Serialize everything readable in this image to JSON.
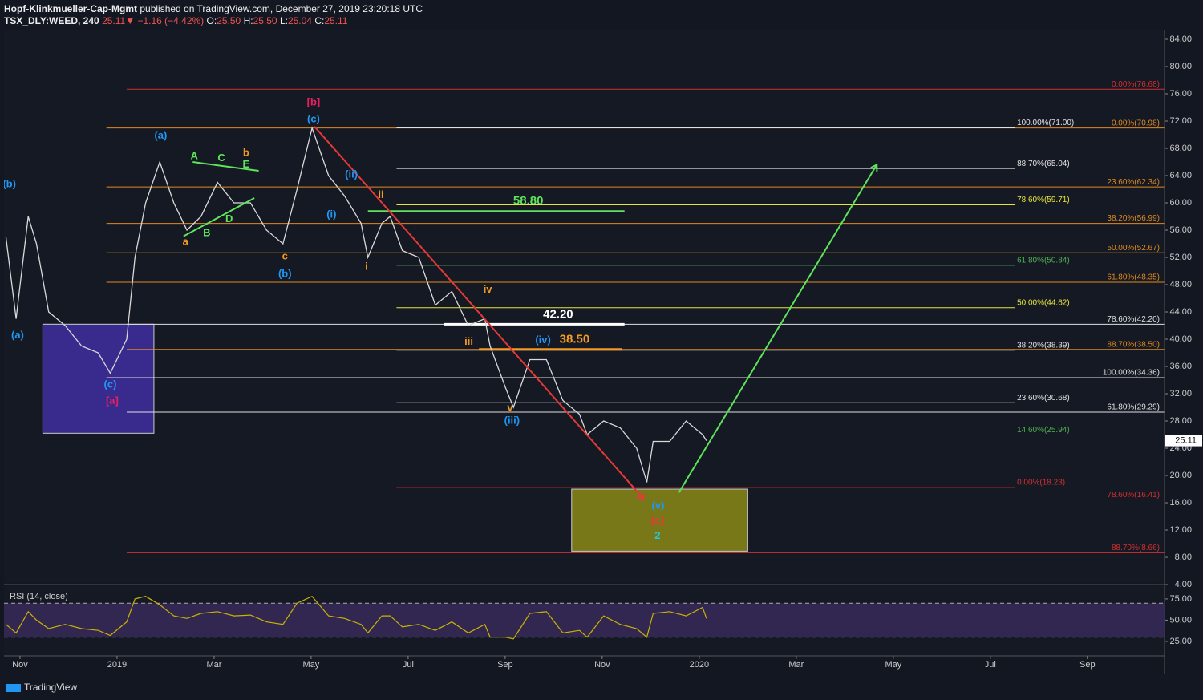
{
  "header": {
    "author": "Hopf-Klinkmueller-Cap-Mgmt",
    "published": "published on TradingView.com, December 27, 2019 23:20:18 UTC",
    "symbol": "TSX_DLY:WEED, 240",
    "last": "25.11",
    "arrow": "▼",
    "change": "−1.16 (−4.42%)",
    "ohlc": [
      {
        "key": "O:",
        "value": "25.50"
      },
      {
        "key": "H:",
        "value": "25.50"
      },
      {
        "key": "L:",
        "value": "25.04"
      },
      {
        "key": "C:",
        "value": "25.11"
      }
    ]
  },
  "footer": "TradingView",
  "chart_data": [
    {
      "type": "line",
      "x": [
        -0.29,
        -0.08,
        0.17,
        0.34,
        0.59,
        0.93,
        1.27,
        1.61,
        1.86,
        2.2,
        2.37,
        2.59,
        2.88,
        3.17,
        3.44,
        3.73,
        4.07,
        4.41,
        4.75,
        5.08,
        5.42,
        5.71,
        6.02,
        6.36,
        6.69,
        7.03,
        7.17,
        7.46,
        7.63,
        7.88,
        8.22,
        8.56,
        8.9,
        9.24,
        9.58,
        9.69,
        10.0,
        10.17,
        10.51,
        10.85,
        11.19,
        11.53,
        11.69,
        12.03,
        12.37,
        12.71,
        12.92,
        13.05,
        13.39,
        13.73,
        14.07,
        14.15
      ],
      "series": [
        {
          "color": "#d9d9d9",
          "values": [
            55,
            43,
            58,
            54,
            44,
            42,
            39,
            38,
            35,
            40,
            52,
            60,
            66,
            60,
            56,
            58,
            63,
            60,
            60,
            56,
            54,
            62,
            71,
            64,
            61,
            57,
            52,
            57,
            58,
            53,
            52,
            45,
            47,
            42,
            43,
            39,
            33,
            30,
            37,
            37,
            31,
            29,
            26,
            28,
            27,
            24,
            19,
            25,
            25,
            28,
            26,
            25.11
          ]
        }
      ],
      "price_label": 25.11,
      "xlim": [
        -0.33,
        23.59
      ],
      "xticks": [
        {
          "value": 0,
          "label": "Nov"
        },
        {
          "value": 2,
          "label": "2019"
        },
        {
          "value": 4,
          "label": "Mar"
        },
        {
          "value": 6,
          "label": "May"
        },
        {
          "value": 8,
          "label": "Jul"
        },
        {
          "value": 10,
          "label": "Sep"
        },
        {
          "value": 12,
          "label": "Nov"
        },
        {
          "value": 14,
          "label": "2020"
        },
        {
          "value": 16,
          "label": "Mar"
        },
        {
          "value": 18,
          "label": "May"
        },
        {
          "value": 20,
          "label": "Jul"
        },
        {
          "value": 22,
          "label": "Sep"
        }
      ],
      "ylim": [
        4.24,
        85.41
      ],
      "yticks": [
        {
          "value": 84,
          "label": "84.00"
        },
        {
          "value": 80,
          "label": "80.00"
        },
        {
          "value": 76,
          "label": "76.00"
        },
        {
          "value": 72,
          "label": "72.00"
        },
        {
          "value": 68,
          "label": "68.00"
        },
        {
          "value": 64,
          "label": "64.00"
        },
        {
          "value": 60,
          "label": "60.00"
        },
        {
          "value": 56,
          "label": "56.00"
        },
        {
          "value": 52,
          "label": "52.00"
        },
        {
          "value": 48,
          "label": "48.00"
        },
        {
          "value": 44,
          "label": "44.00"
        },
        {
          "value": 40,
          "label": "40.00"
        },
        {
          "value": 36,
          "label": "36.00"
        },
        {
          "value": 32,
          "label": "32.00"
        },
        {
          "value": 28,
          "label": "28.00"
        },
        {
          "value": 24,
          "label": "24.00"
        },
        {
          "value": 20,
          "label": "20.00"
        },
        {
          "value": 16,
          "label": "16.00"
        },
        {
          "value": 12,
          "label": "12.00"
        },
        {
          "value": 8,
          "label": "8.00"
        },
        {
          "value": 4,
          "label": "4.00"
        }
      ],
      "levels": [
        {
          "label": "0.00%(76.68)",
          "value": 76.68,
          "color": "#d32f2f",
          "x0": 2.2,
          "x1": 23.59
        },
        {
          "label": "0.00%(70.98)",
          "value": 70.98,
          "color": "#e08a1e",
          "x0": 1.78,
          "x1": 23.59
        },
        {
          "label": "23.60%(62.34)",
          "value": 62.34,
          "color": "#e08a1e",
          "x0": 1.78,
          "x1": 23.59
        },
        {
          "label": "38.20%(56.99)",
          "value": 56.99,
          "color": "#e08a1e",
          "x0": 1.78,
          "x1": 23.59
        },
        {
          "label": "50.00%(52.67)",
          "value": 52.67,
          "color": "#e08a1e",
          "x0": 1.78,
          "x1": 23.59
        },
        {
          "label": "61.80%(48.35)",
          "value": 48.35,
          "color": "#e08a1e",
          "x0": 1.78,
          "x1": 23.59
        },
        {
          "label": "78.60%(42.20)",
          "value": 42.2,
          "color": "#e0e0e0",
          "x0": 2.2,
          "x1": 23.59
        },
        {
          "label": "88.70%(38.50)",
          "value": 38.5,
          "color": "#e08a1e",
          "x0": 2.2,
          "x1": 23.59
        },
        {
          "label": "100.00%(34.36)",
          "value": 34.36,
          "color": "#e0e0e0",
          "x0": 1.78,
          "x1": 23.59
        },
        {
          "label": "61.80%(29.29)",
          "value": 29.29,
          "color": "#e0e0e0",
          "x0": 2.2,
          "x1": 23.59
        },
        {
          "label": "78.60%(16.41)",
          "value": 16.41,
          "color": "#d32f2f",
          "x0": 2.2,
          "x1": 23.59
        },
        {
          "label": "88.70%(8.66)",
          "value": 8.66,
          "color": "#d32f2f",
          "x0": 2.2,
          "x1": 23.59
        },
        {
          "label": "100.00%(71.00)",
          "value": 71,
          "color": "#e0e0e0",
          "x0": 7.76,
          "x1": 20.5
        },
        {
          "label": "88.70%(65.04)",
          "value": 65.04,
          "color": "#e0e0e0",
          "x0": 7.76,
          "x1": 20.5
        },
        {
          "label": "78.60%(59.71)",
          "value": 59.71,
          "color": "#e5e53b",
          "x0": 7.76,
          "x1": 20.5
        },
        {
          "label": "61.80%(50.84)",
          "value": 50.84,
          "color": "#4caf50",
          "x0": 7.76,
          "x1": 20.5
        },
        {
          "label": "50.00%(44.62)",
          "value": 44.62,
          "color": "#e5e53b",
          "x0": 7.76,
          "x1": 20.5
        },
        {
          "label": "38.20%(38.39)",
          "value": 38.39,
          "color": "#e0e0e0",
          "x0": 7.76,
          "x1": 20.5
        },
        {
          "label": "23.60%(30.68)",
          "value": 30.68,
          "color": "#e0e0e0",
          "x0": 7.76,
          "x1": 20.5
        },
        {
          "label": "14.60%(25.94)",
          "value": 25.94,
          "color": "#4caf50",
          "x0": 7.76,
          "x1": 20.5
        },
        {
          "label": "0.00%(18.23)",
          "value": 18.23,
          "color": "#d32f2f",
          "x0": 7.76,
          "x1": 20.5
        }
      ],
      "targets": [
        {
          "label": "58.80",
          "value": 58.8,
          "color": "#5ee35a",
          "x0": 7.17,
          "x1": 12.46
        },
        {
          "label": "42.20",
          "value": 42.2,
          "color": "#ffffff",
          "x0": 8.73,
          "x1": 12.46
        },
        {
          "label": "38.50",
          "value": 38.5,
          "color": "#f59a23",
          "x0": 9.46,
          "x1": 12.41
        }
      ],
      "waves": [
        {
          "text": "(b)",
          "color": "#2196f3",
          "x": -0.22,
          "y": 62.7
        },
        {
          "text": "(a)",
          "color": "#2196f3",
          "x": -0.05,
          "y": 40.5
        },
        {
          "text": "(c)",
          "color": "#2196f3",
          "x": 1.86,
          "y": 33.3
        },
        {
          "text": "[a]",
          "color": "#e91e63",
          "x": 1.9,
          "y": 30.9
        },
        {
          "text": "(a)",
          "color": "#2196f3",
          "x": 2.9,
          "y": 69.8
        },
        {
          "text": "A",
          "color": "#5ee35a",
          "x": 3.59,
          "y": 66.8
        },
        {
          "text": "C",
          "color": "#5ee35a",
          "x": 4.15,
          "y": 66.5
        },
        {
          "text": "b",
          "color": "#f59a23",
          "x": 4.66,
          "y": 67.3
        },
        {
          "text": "E",
          "color": "#5ee35a",
          "x": 4.66,
          "y": 65.6
        },
        {
          "text": "D",
          "color": "#5ee35a",
          "x": 4.31,
          "y": 57.6
        },
        {
          "text": "B",
          "color": "#5ee35a",
          "x": 3.85,
          "y": 55.5
        },
        {
          "text": "a",
          "color": "#f59a23",
          "x": 3.41,
          "y": 54.2
        },
        {
          "text": "c",
          "color": "#f59a23",
          "x": 5.46,
          "y": 52.1
        },
        {
          "text": "(b)",
          "color": "#2196f3",
          "x": 5.46,
          "y": 49.5
        },
        {
          "text": "[b]",
          "color": "#e91e63",
          "x": 6.05,
          "y": 74.7
        },
        {
          "text": "(c)",
          "color": "#2196f3",
          "x": 6.05,
          "y": 72.2
        },
        {
          "text": "(ii)",
          "color": "#2196f3",
          "x": 6.83,
          "y": 64.1
        },
        {
          "text": "(i)",
          "color": "#2196f3",
          "x": 6.42,
          "y": 58.2
        },
        {
          "text": "ii",
          "color": "#f59a23",
          "x": 7.44,
          "y": 61.1
        },
        {
          "text": "i",
          "color": "#f59a23",
          "x": 7.14,
          "y": 50.6
        },
        {
          "text": "iv",
          "color": "#f59a23",
          "x": 9.64,
          "y": 47.2
        },
        {
          "text": "iii",
          "color": "#f59a23",
          "x": 9.25,
          "y": 39.6
        },
        {
          "text": "(iv)",
          "color": "#2196f3",
          "x": 10.78,
          "y": 39.8
        },
        {
          "text": "v",
          "color": "#f59a23",
          "x": 10.1,
          "y": 29.9
        },
        {
          "text": "(iii)",
          "color": "#2196f3",
          "x": 10.14,
          "y": 28.0
        },
        {
          "text": "(v)",
          "color": "#2196f3",
          "x": 13.15,
          "y": 15.5
        },
        {
          "text": "[c]",
          "color": "#e53935",
          "x": 13.14,
          "y": 13.3
        },
        {
          "text": "2",
          "color": "#26c6da",
          "x": 13.14,
          "y": 11.1
        }
      ],
      "segments": [
        {
          "color": "#e53935",
          "x": [
            6.07,
            12.85
          ],
          "y": [
            71.2,
            16.6
          ],
          "arrow": true
        },
        {
          "color": "#5ee35a",
          "x": [
            13.58,
            17.66
          ],
          "y": [
            17.5,
            65.6
          ],
          "arrow": true
        },
        {
          "color": "#5ee35a",
          "x": [
            3.56,
            4.92
          ],
          "y": [
            66.0,
            64.7
          ],
          "arrow": false
        },
        {
          "color": "#5ee35a",
          "x": [
            3.37,
            4.83
          ],
          "y": [
            55.1,
            60.7
          ],
          "arrow": false
        }
      ],
      "boxes": [
        {
          "color": "#3f2fa0",
          "x": [
            0.47,
            2.76
          ],
          "y": [
            42.2,
            26.2
          ]
        },
        {
          "color": "#8a8a18",
          "x": [
            11.37,
            15.0
          ],
          "y": [
            18.0,
            8.9
          ]
        }
      ]
    },
    {
      "type": "line",
      "series": [
        {
          "name": "RSI (14, close)",
          "color": "#c9b400",
          "values": [
            45,
            35,
            60,
            50,
            40,
            45,
            40,
            38,
            32,
            48,
            75,
            78,
            68,
            55,
            52,
            58,
            60,
            55,
            56,
            48,
            45,
            70,
            78,
            55,
            52,
            45,
            35,
            55,
            55,
            42,
            45,
            38,
            48,
            35,
            45,
            30,
            30,
            28,
            58,
            60,
            35,
            38,
            30,
            55,
            45,
            40,
            30,
            58,
            60,
            55,
            65,
            52
          ]
        }
      ],
      "ylim": [
        8,
        90
      ],
      "yticks": [
        {
          "value": 75,
          "label": "75.00"
        },
        {
          "value": 50,
          "label": "50.00"
        },
        {
          "value": 25,
          "label": "25.00"
        }
      ],
      "bands": [
        30,
        70
      ]
    }
  ]
}
